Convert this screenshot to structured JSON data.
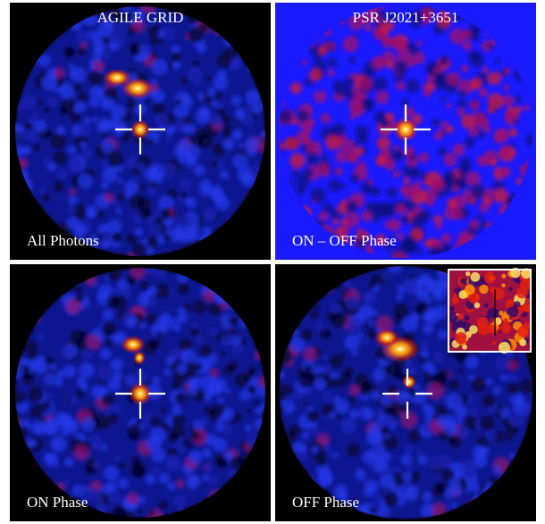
{
  "panels": [
    {
      "id": "tl",
      "title": "AGILE GRID",
      "label": "All Photons",
      "background": "#000000"
    },
    {
      "id": "tr",
      "title": "PSR J2021+3651",
      "label": "ON – OFF Phase",
      "background": "#1a1aff"
    },
    {
      "id": "bl",
      "title": "",
      "label": "ON Phase",
      "background": "#000000"
    },
    {
      "id": "br",
      "title": "",
      "label": "OFF Phase",
      "background": "#000000",
      "has_inset": true
    }
  ],
  "colormap": [
    "#000000",
    "#0b0b5c",
    "#1f2fd8",
    "#a01060",
    "#e02010",
    "#ff8a00",
    "#ffd040",
    "#ffffff"
  ],
  "marker": "crosshair"
}
